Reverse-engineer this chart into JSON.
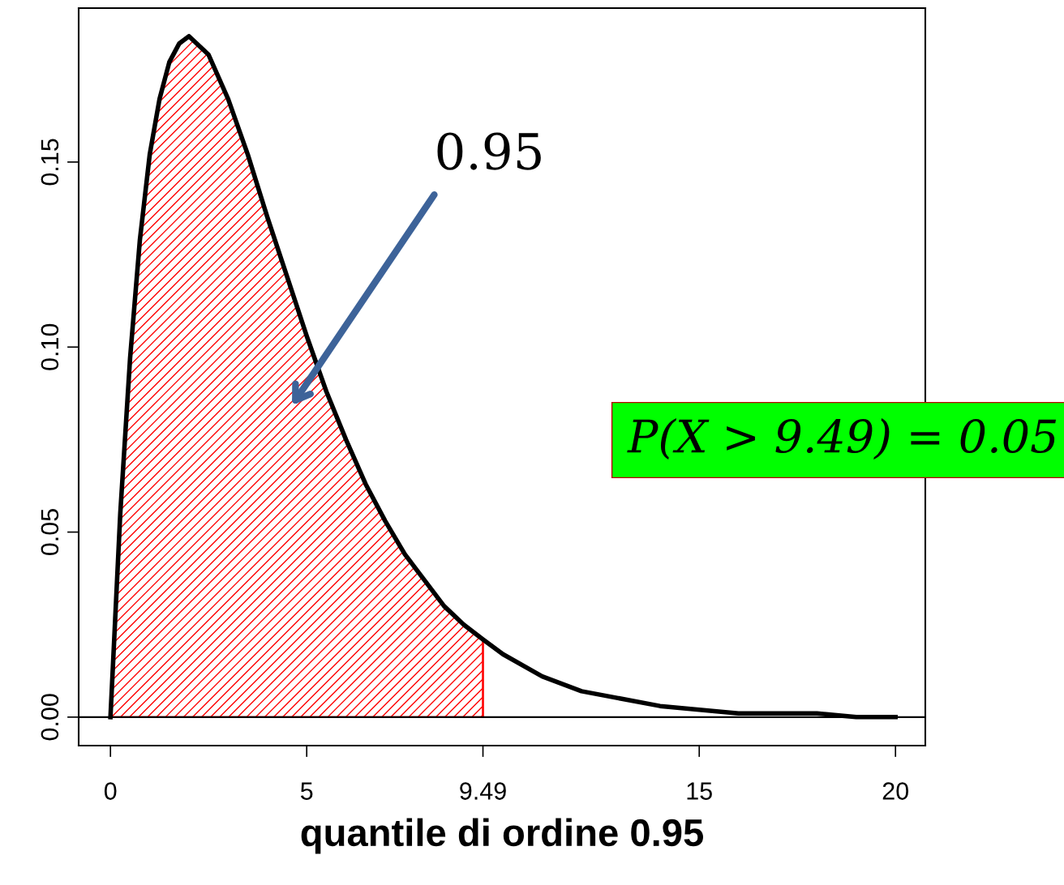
{
  "chart_data": {
    "type": "line",
    "xlabel": "quantile di ordine 0.95",
    "series": [
      {
        "type": "area",
        "color": "#ff0000",
        "x": [
          0,
          0.25,
          0.5,
          0.75,
          1,
          1.25,
          1.5,
          1.75,
          2,
          2.5,
          3,
          3.5,
          4,
          4.5,
          5,
          5.5,
          6,
          6.5,
          7,
          7.5,
          8,
          8.5,
          9,
          9.49
        ],
        "values": [
          0,
          0.055,
          0.097,
          0.129,
          0.152,
          0.167,
          0.177,
          0.182,
          0.184,
          0.179,
          0.167,
          0.152,
          0.135,
          0.119,
          0.103,
          0.088,
          0.075,
          0.063,
          0.053,
          0.044,
          0.037,
          0.03,
          0.025,
          0.021
        ]
      },
      {
        "color": "#000000",
        "x": [
          0,
          0.25,
          0.5,
          0.75,
          1,
          1.25,
          1.5,
          1.75,
          2,
          2.5,
          3,
          3.5,
          4,
          4.5,
          5,
          5.5,
          6,
          6.5,
          7,
          7.5,
          8,
          8.5,
          9,
          9.49,
          10,
          11,
          12,
          13,
          14,
          15,
          16,
          17,
          18,
          19,
          20
        ],
        "values": [
          0,
          0.055,
          0.097,
          0.129,
          0.152,
          0.167,
          0.177,
          0.182,
          0.184,
          0.179,
          0.167,
          0.152,
          0.135,
          0.119,
          0.103,
          0.088,
          0.075,
          0.063,
          0.053,
          0.044,
          0.037,
          0.03,
          0.025,
          0.021,
          0.017,
          0.011,
          0.007,
          0.005,
          0.003,
          0.002,
          0.001,
          0.001,
          0.001,
          0.0,
          0.0
        ]
      }
    ],
    "xlim": [
      -0.81,
      20.76
    ],
    "ylim": [
      -0.0077,
      0.1916
    ],
    "xticks": [
      0,
      5,
      9.49,
      15,
      20
    ],
    "yticks": [
      {
        "value": 0,
        "label": "0.00"
      },
      {
        "value": 0.05,
        "label": "0.05"
      },
      {
        "value": 0.1,
        "label": "0.10"
      },
      {
        "value": 0.15,
        "label": "0.15"
      }
    ],
    "ref_lines": [
      {
        "axis": "y",
        "value": 0,
        "color": "#000000"
      }
    ],
    "annotations": [
      "0.95",
      "P(X > 9.49) = 0.05"
    ],
    "grid": false,
    "legend": false,
    "marker": "none",
    "line_style": "solid"
  }
}
